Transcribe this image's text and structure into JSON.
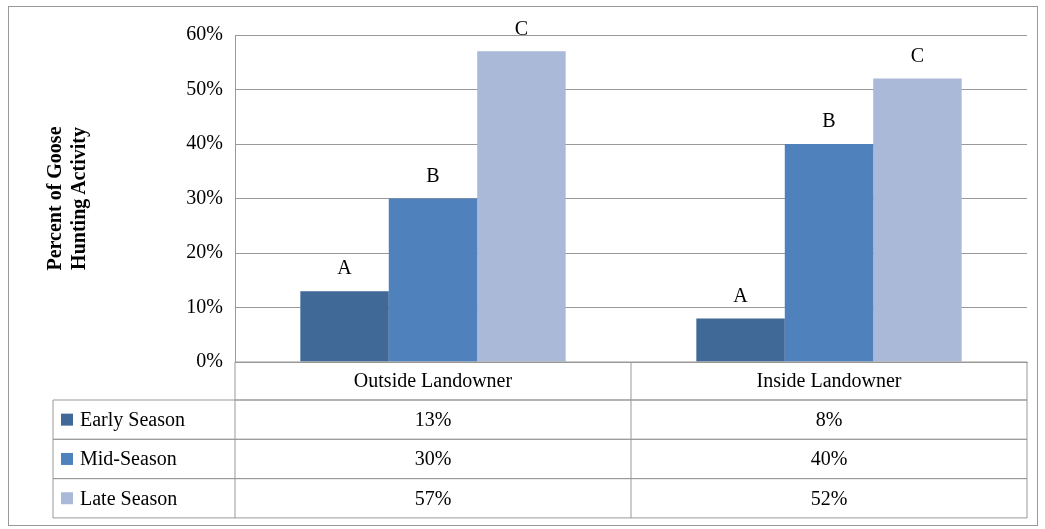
{
  "chart_data": {
    "type": "bar",
    "ylabel": "Percent of Goose\nHunting Activity",
    "categories": [
      "Outside Landowner",
      "Inside Landowner"
    ],
    "series": [
      {
        "name": "Early Season",
        "color": "#416998",
        "values": [
          13,
          8
        ],
        "value_labels": [
          "13%",
          "8%"
        ]
      },
      {
        "name": "Mid-Season",
        "color": "#4f81bd",
        "values": [
          30,
          40
        ],
        "value_labels": [
          "30%",
          "40%"
        ]
      },
      {
        "name": "Late Season",
        "color": "#aab9d8",
        "values": [
          57,
          52
        ],
        "value_labels": [
          "57%",
          "52%"
        ]
      }
    ],
    "ylim": [
      0,
      60
    ],
    "yticks": [
      {
        "value": 0,
        "label": "0%"
      },
      {
        "value": 10,
        "label": "10%"
      },
      {
        "value": 20,
        "label": "20%"
      },
      {
        "value": 30,
        "label": "30%"
      },
      {
        "value": 40,
        "label": "40%"
      },
      {
        "value": 50,
        "label": "50%"
      },
      {
        "value": 60,
        "label": "60%"
      }
    ],
    "grid": "y",
    "legend": "bottom",
    "annotations": [
      "A",
      "B",
      "C",
      "A",
      "B",
      "C"
    ]
  }
}
